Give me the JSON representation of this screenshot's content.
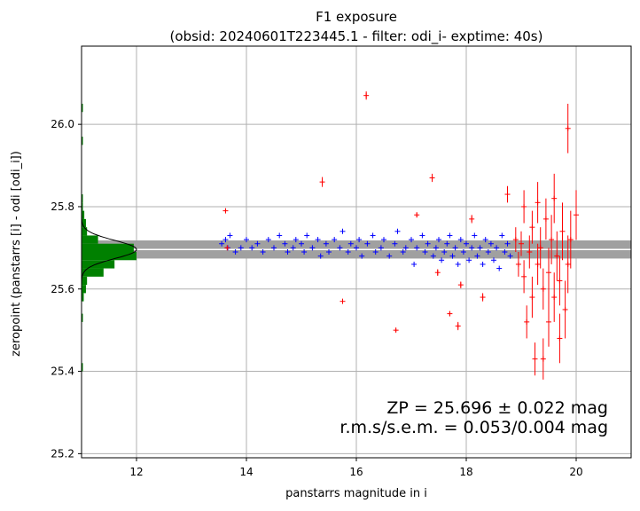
{
  "chart_data": {
    "type": "scatter",
    "title": "F1 exposure",
    "subtitle": "(obsid: 20240601T223445.1 - filter: odi_i- exptime: 40s)",
    "xlabel": "panstarrs magnitude in i",
    "ylabel": "zeropoint (panstarrs [i] - odi [odi_i])",
    "xlim": [
      11.0,
      21.0
    ],
    "ylim": [
      25.19,
      26.19
    ],
    "xticks": [
      12,
      14,
      16,
      18,
      20
    ],
    "yticks": [
      25.2,
      25.4,
      25.6,
      25.8,
      26.0
    ],
    "xtick_labels": [
      "12",
      "14",
      "16",
      "18",
      "20"
    ],
    "ytick_labels": [
      "25.2",
      "25.4",
      "25.6",
      "25.8",
      "26.0"
    ],
    "grid": true,
    "zp_band": {
      "center": 25.696,
      "halfwidth": 0.022,
      "color": "#a0a0a0"
    },
    "annotation": {
      "line1": "ZP = 25.696 ± 0.022 mag",
      "line2": "r.m.s/s.e.m. = 0.053/0.004 mag"
    },
    "histogram": {
      "color": "#008000",
      "bins": [
        {
          "y0": 25.4,
          "y1": 25.42,
          "w": 0.02
        },
        {
          "y0": 25.52,
          "y1": 25.54,
          "w": 0.02
        },
        {
          "y0": 25.57,
          "y1": 25.59,
          "w": 0.04
        },
        {
          "y0": 25.59,
          "y1": 25.61,
          "w": 0.08
        },
        {
          "y0": 25.61,
          "y1": 25.63,
          "w": 0.1
        },
        {
          "y0": 25.63,
          "y1": 25.65,
          "w": 0.4
        },
        {
          "y0": 25.65,
          "y1": 25.67,
          "w": 0.6
        },
        {
          "y0": 25.67,
          "y1": 25.69,
          "w": 1.0
        },
        {
          "y0": 25.69,
          "y1": 25.71,
          "w": 0.95
        },
        {
          "y0": 25.71,
          "y1": 25.73,
          "w": 0.3
        },
        {
          "y0": 25.73,
          "y1": 25.75,
          "w": 0.1
        },
        {
          "y0": 25.75,
          "y1": 25.77,
          "w": 0.08
        },
        {
          "y0": 25.77,
          "y1": 25.79,
          "w": 0.05
        },
        {
          "y0": 25.79,
          "y1": 25.81,
          "w": 0.02
        },
        {
          "y0": 25.81,
          "y1": 25.83,
          "w": 0.02
        },
        {
          "y0": 25.95,
          "y1": 25.97,
          "w": 0.02
        },
        {
          "y0": 26.03,
          "y1": 26.05,
          "w": 0.02
        }
      ]
    },
    "gaussian": {
      "mean": 25.696,
      "sigma": 0.022,
      "peak_w": 1.0,
      "color": "#000000"
    },
    "series": [
      {
        "name": "",
        "color": "#0000ff",
        "points": [
          [
            13.55,
            25.71
          ],
          [
            13.62,
            25.72
          ],
          [
            13.66,
            25.7
          ],
          [
            13.7,
            25.73
          ],
          [
            13.8,
            25.69
          ],
          [
            13.9,
            25.7
          ],
          [
            14.0,
            25.72
          ],
          [
            14.1,
            25.7
          ],
          [
            14.2,
            25.71
          ],
          [
            14.3,
            25.69
          ],
          [
            14.4,
            25.72
          ],
          [
            14.5,
            25.7
          ],
          [
            14.6,
            25.73
          ],
          [
            14.7,
            25.71
          ],
          [
            14.75,
            25.69
          ],
          [
            14.85,
            25.7
          ],
          [
            14.9,
            25.72
          ],
          [
            15.0,
            25.71
          ],
          [
            15.05,
            25.69
          ],
          [
            15.1,
            25.73
          ],
          [
            15.2,
            25.7
          ],
          [
            15.3,
            25.72
          ],
          [
            15.35,
            25.68
          ],
          [
            15.45,
            25.71
          ],
          [
            15.5,
            25.69
          ],
          [
            15.6,
            25.72
          ],
          [
            15.7,
            25.7
          ],
          [
            15.75,
            25.74
          ],
          [
            15.85,
            25.69
          ],
          [
            15.9,
            25.71
          ],
          [
            16.0,
            25.7
          ],
          [
            16.05,
            25.72
          ],
          [
            16.1,
            25.68
          ],
          [
            16.2,
            25.71
          ],
          [
            16.3,
            25.73
          ],
          [
            16.35,
            25.69
          ],
          [
            16.45,
            25.7
          ],
          [
            16.5,
            25.72
          ],
          [
            16.6,
            25.68
          ],
          [
            16.7,
            25.71
          ],
          [
            16.75,
            25.74
          ],
          [
            16.85,
            25.69
          ],
          [
            16.9,
            25.7
          ],
          [
            17.0,
            25.72
          ],
          [
            17.05,
            25.66
          ],
          [
            17.1,
            25.7
          ],
          [
            17.2,
            25.73
          ],
          [
            17.25,
            25.69
          ],
          [
            17.3,
            25.71
          ],
          [
            17.4,
            25.68
          ],
          [
            17.45,
            25.7
          ],
          [
            17.5,
            25.72
          ],
          [
            17.55,
            25.67
          ],
          [
            17.6,
            25.69
          ],
          [
            17.65,
            25.71
          ],
          [
            17.7,
            25.73
          ],
          [
            17.75,
            25.68
          ],
          [
            17.8,
            25.7
          ],
          [
            17.85,
            25.66
          ],
          [
            17.9,
            25.72
          ],
          [
            17.95,
            25.69
          ],
          [
            18.0,
            25.71
          ],
          [
            18.05,
            25.67
          ],
          [
            18.1,
            25.7
          ],
          [
            18.15,
            25.73
          ],
          [
            18.2,
            25.68
          ],
          [
            18.25,
            25.7
          ],
          [
            18.3,
            25.66
          ],
          [
            18.35,
            25.72
          ],
          [
            18.4,
            25.69
          ],
          [
            18.45,
            25.71
          ],
          [
            18.5,
            25.67
          ],
          [
            18.55,
            25.7
          ],
          [
            18.6,
            25.65
          ],
          [
            18.65,
            25.73
          ],
          [
            18.7,
            25.69
          ],
          [
            18.75,
            25.71
          ],
          [
            18.8,
            25.68
          ]
        ]
      },
      {
        "name": "",
        "color": "#ff0000",
        "points": [
          [
            13.62,
            25.79,
            0.004
          ],
          [
            13.65,
            25.7,
            0.004
          ],
          [
            15.38,
            25.86,
            0.012
          ],
          [
            15.75,
            25.57,
            0.004
          ],
          [
            16.18,
            26.07,
            0.01
          ],
          [
            16.72,
            25.5,
            0.004
          ],
          [
            17.1,
            25.78,
            0.006
          ],
          [
            17.38,
            25.87,
            0.01
          ],
          [
            17.48,
            25.64,
            0.008
          ],
          [
            17.7,
            25.54,
            0.006
          ],
          [
            17.85,
            25.51,
            0.01
          ],
          [
            17.9,
            25.61,
            0.008
          ],
          [
            18.1,
            25.77,
            0.01
          ],
          [
            18.3,
            25.58,
            0.01
          ],
          [
            18.75,
            25.83,
            0.02
          ],
          [
            18.9,
            25.72,
            0.03
          ],
          [
            18.95,
            25.66,
            0.03
          ],
          [
            19.0,
            25.71,
            0.03
          ],
          [
            19.05,
            25.63,
            0.04
          ],
          [
            19.05,
            25.8,
            0.04
          ],
          [
            19.1,
            25.52,
            0.04
          ],
          [
            19.15,
            25.69,
            0.04
          ],
          [
            19.2,
            25.75,
            0.04
          ],
          [
            19.2,
            25.58,
            0.05
          ],
          [
            19.25,
            25.43,
            0.04
          ],
          [
            19.3,
            25.66,
            0.05
          ],
          [
            19.3,
            25.81,
            0.05
          ],
          [
            19.35,
            25.7,
            0.05
          ],
          [
            19.4,
            25.6,
            0.05
          ],
          [
            19.4,
            25.43,
            0.05
          ],
          [
            19.45,
            25.77,
            0.05
          ],
          [
            19.5,
            25.64,
            0.06
          ],
          [
            19.5,
            25.52,
            0.06
          ],
          [
            19.55,
            25.72,
            0.06
          ],
          [
            19.6,
            25.58,
            0.06
          ],
          [
            19.6,
            25.82,
            0.06
          ],
          [
            19.65,
            25.68,
            0.06
          ],
          [
            19.7,
            25.48,
            0.06
          ],
          [
            19.7,
            25.62,
            0.06
          ],
          [
            19.75,
            25.74,
            0.07
          ],
          [
            19.8,
            25.55,
            0.07
          ],
          [
            19.85,
            25.99,
            0.06
          ],
          [
            19.85,
            25.66,
            0.07
          ],
          [
            19.9,
            25.72,
            0.07
          ],
          [
            20.0,
            25.78,
            0.06
          ]
        ]
      }
    ]
  }
}
